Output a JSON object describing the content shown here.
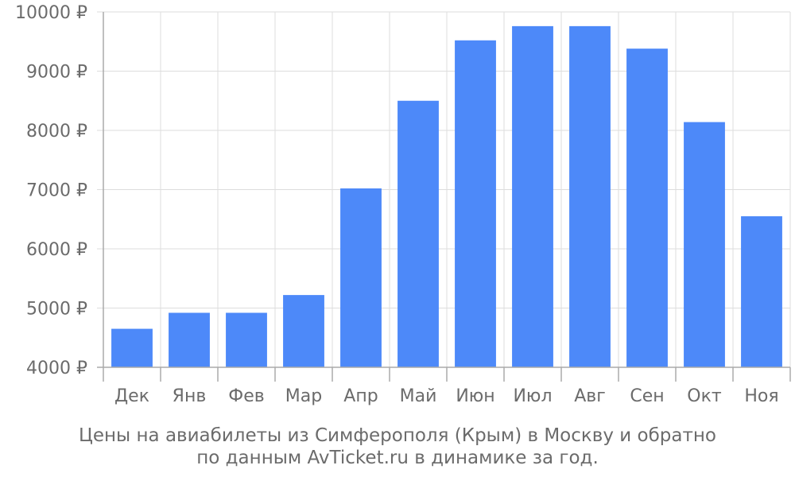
{
  "chart_data": {
    "type": "bar",
    "categories": [
      "Дек",
      "Янв",
      "Фев",
      "Мар",
      "Апр",
      "Май",
      "Июн",
      "Июл",
      "Авг",
      "Сен",
      "Окт",
      "Ноя"
    ],
    "values": [
      4650,
      4920,
      4920,
      5220,
      7020,
      8500,
      9520,
      9760,
      9760,
      9380,
      8140,
      6550
    ],
    "ylim": [
      4000,
      10000
    ],
    "yticks": [
      4000,
      5000,
      6000,
      7000,
      8000,
      9000,
      10000
    ],
    "ytick_labels": [
      "4000 ₽",
      "5000 ₽",
      "6000 ₽",
      "7000 ₽",
      "8000 ₽",
      "9000 ₽",
      "10000 ₽"
    ],
    "grid": true,
    "bar_color": "#4d89f9",
    "grid_color": "#dddddd",
    "axis_color": "#aaaaaa",
    "text_color": "#6b6b6b"
  },
  "caption": {
    "line1": "Цены на авиабилеты из Симферополя (Крым) в Москву и обратно",
    "line2": "по данным AvTicket.ru в динамике за год."
  }
}
